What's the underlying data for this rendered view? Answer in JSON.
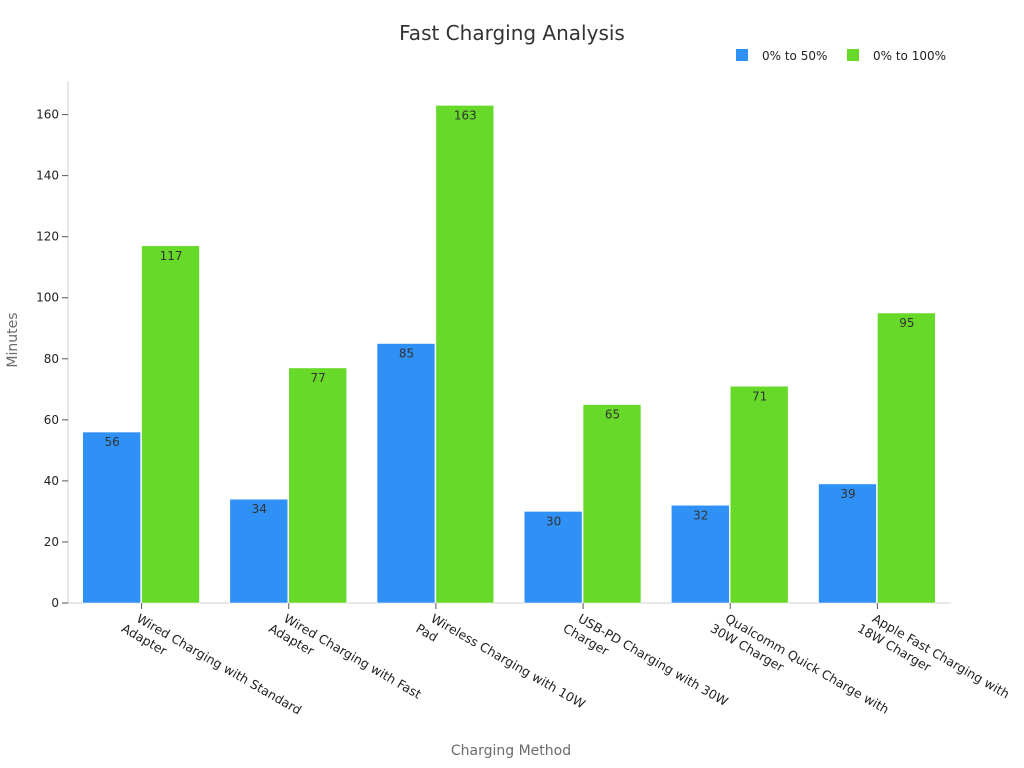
{
  "chart_data": {
    "type": "bar",
    "title": "Fast Charging Analysis",
    "xlabel": "Charging Method",
    "ylabel": "Minutes",
    "categories": [
      "Wired Charging with Standard Adapter",
      "Wired Charging with Fast Adapter",
      "Wireless Charging with 10W Pad",
      "USB-PD Charging with 30W Charger",
      "Qualcomm Quick Charge with 30W Charger",
      "Apple Fast Charging with 18W Charger"
    ],
    "category_lines": [
      [
        "Wired Charging with Standard",
        "Adapter"
      ],
      [
        "Wired Charging with Fast",
        "Adapter"
      ],
      [
        "Wireless Charging with 10W",
        "Pad"
      ],
      [
        "USB-PD Charging with 30W",
        "Charger"
      ],
      [
        "Qualcomm Quick Charge with",
        "30W Charger"
      ],
      [
        "Apple Fast Charging with",
        "18W Charger"
      ]
    ],
    "series": [
      {
        "name": "0% to 50%",
        "color": "#2f90f5",
        "values": [
          56,
          34,
          85,
          30,
          32,
          39
        ]
      },
      {
        "name": "0% to 100%",
        "color": "#66d929",
        "values": [
          117,
          77,
          163,
          65,
          71,
          95
        ]
      }
    ],
    "ylim": [
      0,
      171
    ],
    "yticks": [
      0,
      20,
      40,
      60,
      80,
      100,
      120,
      140,
      160
    ],
    "grid": false,
    "legend": "top-right",
    "data_labels": true
  }
}
